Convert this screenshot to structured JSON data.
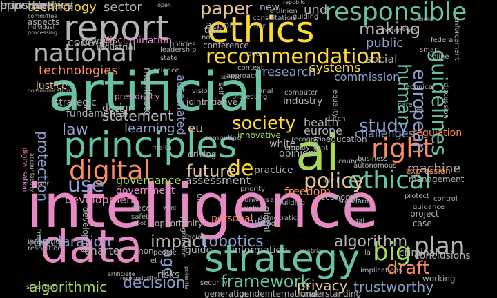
{
  "palette": {
    "pink": "#e78ac3",
    "teal": "#66c2a5",
    "orange": "#fc8d62",
    "lavender": "#8da0cb",
    "green": "#a6d854",
    "yellow": "#ffd92f",
    "tan": "#e5c494",
    "gray": "#b3b3b3"
  },
  "words": [
    {
      "text": "intelligence",
      "color": "pink"
    },
    {
      "text": "artificial",
      "color": "teal"
    },
    {
      "text": "ai",
      "color": "green"
    },
    {
      "text": "principles",
      "color": "teal"
    },
    {
      "text": "ethics",
      "color": "yellow"
    },
    {
      "text": "data",
      "color": "pink"
    },
    {
      "text": "report",
      "color": "gray"
    },
    {
      "text": "national",
      "color": "gray"
    },
    {
      "text": "strategy",
      "color": "teal"
    },
    {
      "text": "digital",
      "color": "orange"
    },
    {
      "text": "right",
      "color": "orange"
    },
    {
      "text": "ethical",
      "color": "teal"
    },
    {
      "text": "responsible",
      "color": "teal"
    },
    {
      "text": "big",
      "color": "green"
    },
    {
      "text": "recommendation",
      "color": "yellow"
    },
    {
      "text": "guidelines",
      "color": "teal"
    },
    {
      "text": "policy",
      "color": "tan"
    },
    {
      "text": "plan",
      "color": "gray"
    },
    {
      "text": "framework",
      "color": "teal"
    },
    {
      "text": "robotics",
      "color": "lavender"
    },
    {
      "text": "society",
      "color": "yellow"
    },
    {
      "text": "european",
      "color": "lavender"
    },
    {
      "text": "human",
      "color": "teal"
    },
    {
      "text": "study",
      "color": "lavender"
    },
    {
      "text": "decision",
      "color": "lavender"
    },
    {
      "text": "algorithm",
      "color": "gray"
    },
    {
      "text": "de",
      "color": "yellow"
    },
    {
      "text": "future",
      "color": "tan"
    },
    {
      "text": "use",
      "color": "lavender"
    },
    {
      "text": "draft",
      "color": "orange"
    },
    {
      "text": "impact",
      "color": "gray"
    },
    {
      "text": "paper",
      "color": "tan"
    },
    {
      "text": "making",
      "color": "gray"
    },
    {
      "text": "technology",
      "color": "yellow"
    },
    {
      "text": "sector",
      "color": "gray"
    },
    {
      "text": "technologies",
      "color": "orange"
    },
    {
      "text": "automated",
      "color": "lavender"
    },
    {
      "text": "public",
      "color": "lavender"
    },
    {
      "text": "law",
      "color": "lavender"
    },
    {
      "text": "protection",
      "color": "lavender"
    },
    {
      "text": "declaration",
      "color": "lavender"
    },
    {
      "text": "trustworthy",
      "color": "lavender"
    },
    {
      "text": "algorithmic",
      "color": "green"
    },
    {
      "text": "statement",
      "color": "gray"
    },
    {
      "text": "fundamental",
      "color": "gray"
    },
    {
      "text": "learning",
      "color": "lavender"
    },
    {
      "text": "eu",
      "color": "tan"
    },
    {
      "text": "government",
      "color": "pink"
    },
    {
      "text": "governance",
      "color": "green"
    },
    {
      "text": "assessment",
      "color": "gray"
    },
    {
      "text": "machine",
      "color": "gray"
    },
    {
      "text": "research",
      "color": "lavender"
    },
    {
      "text": "systems",
      "color": "yellow"
    },
    {
      "text": "social",
      "color": "gray"
    },
    {
      "text": "commission",
      "color": "lavender"
    },
    {
      "text": "health",
      "color": "gray"
    },
    {
      "text": "europe",
      "color": "gray"
    },
    {
      "text": "privacy",
      "color": "tan"
    },
    {
      "text": "age",
      "color": "lavender"
    },
    {
      "text": "code",
      "color": "gray"
    },
    {
      "text": "discrimination",
      "color": "pink"
    },
    {
      "text": "und",
      "color": "gray"
    },
    {
      "text": "new",
      "color": "gray"
    },
    {
      "text": "action",
      "color": "gray"
    },
    {
      "text": "challenges",
      "color": "lavender"
    },
    {
      "text": "regulation",
      "color": "orange"
    },
    {
      "text": "freedom",
      "color": "orange"
    },
    {
      "text": "opinion",
      "color": "gray"
    },
    {
      "text": "white",
      "color": "gray"
    },
    {
      "text": "innovative",
      "color": "green"
    },
    {
      "text": "practice",
      "color": "gray"
    },
    {
      "text": "development",
      "color": "pink"
    },
    {
      "text": "design",
      "color": "gray"
    },
    {
      "text": "industry",
      "color": "gray"
    },
    {
      "text": "management",
      "color": "gray"
    },
    {
      "text": "expression",
      "color": "orange"
    },
    {
      "text": "education",
      "color": "gray"
    },
    {
      "text": "rules",
      "color": "lavender"
    },
    {
      "text": "information",
      "color": "gray"
    },
    {
      "text": "conclusions",
      "color": "gray"
    },
    {
      "text": "risks",
      "color": "gray"
    },
    {
      "text": "charter",
      "color": "gray"
    },
    {
      "text": "working",
      "color": "gray"
    },
    {
      "text": "guide",
      "color": "gray"
    },
    {
      "text": "toward",
      "color": "gray"
    },
    {
      "text": "industrial",
      "color": "gray"
    },
    {
      "text": "strategic",
      "color": "gray"
    },
    {
      "text": "justice",
      "color": "tan"
    },
    {
      "text": "aspects",
      "color": "gray"
    },
    {
      "text": "committee",
      "color": "gray"
    },
    {
      "text": "individual",
      "color": "gray"
    },
    {
      "text": "processing",
      "color": "gray"
    },
    {
      "text": "group",
      "color": "gray"
    },
    {
      "text": "manifesto",
      "color": "gray"
    },
    {
      "text": "presidency",
      "color": "pink"
    },
    {
      "text": "communication",
      "color": "gray"
    },
    {
      "text": "digitalisation",
      "color": "pink"
    },
    {
      "text": "accountability",
      "color": "gray"
    },
    {
      "text": "innovation",
      "color": "gray"
    },
    {
      "text": "resolution",
      "color": "gray"
    },
    {
      "text": "developing",
      "color": "gray"
    },
    {
      "text": "opportunity",
      "color": "gray"
    },
    {
      "text": "oecd",
      "color": "gray"
    },
    {
      "text": "safety",
      "color": "gray"
    },
    {
      "text": "malta",
      "color": "gray"
    },
    {
      "text": "driving",
      "color": "gray"
    },
    {
      "text": "uk",
      "color": "gray"
    },
    {
      "text": "personal",
      "color": "orange"
    },
    {
      "text": "good",
      "color": "gray"
    },
    {
      "text": "vehicle",
      "color": "gray"
    },
    {
      "text": "economic",
      "color": "gray"
    },
    {
      "text": "council",
      "color": "gray"
    },
    {
      "text": "priority",
      "color": "gray"
    },
    {
      "text": "building",
      "color": "gray"
    },
    {
      "text": "austria",
      "color": "gray"
    },
    {
      "text": "implications",
      "color": "gray"
    },
    {
      "text": "understanding",
      "color": "gray"
    },
    {
      "text": "international",
      "color": "gray"
    },
    {
      "text": "criminal",
      "color": "gray"
    },
    {
      "text": "la",
      "color": "gray"
    },
    {
      "text": "case",
      "color": "gray"
    },
    {
      "text": "project",
      "color": "gray"
    },
    {
      "text": "guidance",
      "color": "gray"
    },
    {
      "text": "protect",
      "color": "gray"
    },
    {
      "text": "control",
      "color": "gray"
    },
    {
      "text": "universal",
      "color": "gray"
    },
    {
      "text": "democratic",
      "color": "gray"
    },
    {
      "text": "global",
      "color": "gray"
    },
    {
      "text": "legal",
      "color": "gray"
    },
    {
      "text": "standard",
      "color": "gray"
    },
    {
      "text": "civil",
      "color": "gray"
    },
    {
      "text": "et",
      "color": "gray"
    },
    {
      "text": "mon",
      "color": "gray"
    },
    {
      "text": "people",
      "color": "gray"
    },
    {
      "text": "facial",
      "color": "gray"
    },
    {
      "text": "programme",
      "color": "gray"
    },
    {
      "text": "security",
      "color": "gray"
    },
    {
      "text": "generation",
      "color": "gray"
    },
    {
      "text": "gender",
      "color": "gray"
    },
    {
      "text": "potential",
      "color": "gray"
    },
    {
      "text": "artificielle",
      "color": "gray"
    },
    {
      "text": "responsibility",
      "color": "gray"
    },
    {
      "text": "scientist",
      "color": "gray"
    },
    {
      "text": "oath",
      "color": "gray"
    },
    {
      "text": "trust",
      "color": "gray"
    },
    {
      "text": "robot",
      "color": "gray"
    },
    {
      "text": "work",
      "color": "gray"
    },
    {
      "text": "era",
      "color": "gray"
    },
    {
      "text": "computing",
      "color": "gray"
    },
    {
      "text": "joint",
      "color": "gray"
    },
    {
      "text": "initiative",
      "color": "gray"
    },
    {
      "text": "self",
      "color": "gray"
    },
    {
      "text": "vision",
      "color": "gray"
    },
    {
      "text": "approach",
      "color": "gray"
    },
    {
      "text": "protecting",
      "color": "gray"
    },
    {
      "text": "final",
      "color": "gray"
    },
    {
      "text": "computer",
      "color": "gray"
    },
    {
      "text": "care",
      "color": "gray"
    },
    {
      "text": "les",
      "color": "gray"
    },
    {
      "text": "technical",
      "color": "gray"
    },
    {
      "text": "equality",
      "color": "gray"
    },
    {
      "text": "dutch",
      "color": "gray"
    },
    {
      "text": "recognition",
      "color": "gray"
    },
    {
      "text": "employment",
      "color": "gray"
    },
    {
      "text": "force",
      "color": "gray"
    },
    {
      "text": "business",
      "color": "gray"
    },
    {
      "text": "autonomous",
      "color": "gray"
    },
    {
      "text": "leadership",
      "color": "gray"
    },
    {
      "text": "state",
      "color": "gray"
    },
    {
      "text": "science",
      "color": "gray"
    },
    {
      "text": "service",
      "color": "gray"
    },
    {
      "text": "context",
      "color": "gray"
    },
    {
      "text": "pour",
      "color": "gray"
    },
    {
      "text": "task",
      "color": "gray"
    },
    {
      "text": "non",
      "color": "gray"
    },
    {
      "text": "conference",
      "color": "gray"
    },
    {
      "text": "consultation",
      "color": "gray"
    },
    {
      "text": "der",
      "color": "gray"
    },
    {
      "text": "leitlinien",
      "color": "gray"
    },
    {
      "text": "guiding",
      "color": "gray"
    },
    {
      "text": "republic",
      "color": "gray"
    },
    {
      "text": "processes",
      "color": "gray"
    },
    {
      "text": "moral",
      "color": "gray"
    },
    {
      "text": "smart",
      "color": "gray"
    },
    {
      "text": "federal",
      "color": "gray"
    },
    {
      "text": "online",
      "color": "gray"
    },
    {
      "text": "discussion",
      "color": "gray"
    },
    {
      "text": "enforcement",
      "color": "gray"
    },
    {
      "text": "open",
      "color": "gray"
    },
    {
      "text": "policies",
      "color": "gray"
    },
    {
      "text": "principled",
      "color": "gray"
    },
    {
      "text": "transparency",
      "color": "gray"
    },
    {
      "text": "opportunities",
      "color": "gray"
    },
    {
      "text": "en",
      "color": "gray"
    },
    {
      "text": "b",
      "color": "gray"
    }
  ]
}
